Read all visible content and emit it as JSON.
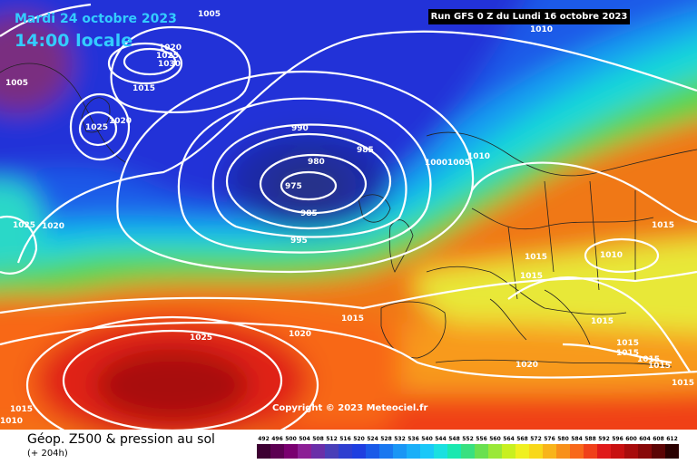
{
  "header": {
    "date": "Mardi 24 octobre 2023",
    "time": "14:00 locale",
    "run": "Run GFS 0 Z du Lundi 16 octobre 2023"
  },
  "copyright": "Copyright © 2023 Meteociel.fr",
  "legend": {
    "title": "Géop. Z500 & pression au sol",
    "subtitle": "(+ 204h)",
    "ticks": [
      "492",
      "496",
      "500",
      "504",
      "508",
      "512",
      "516",
      "520",
      "524",
      "528",
      "532",
      "536",
      "540",
      "544",
      "548",
      "552",
      "556",
      "560",
      "564",
      "568",
      "572",
      "576",
      "580",
      "584",
      "588",
      "592",
      "596",
      "600",
      "604",
      "608",
      "612"
    ],
    "colors": [
      "#3d0032",
      "#5c0052",
      "#7a0070",
      "#8c1f95",
      "#6a2fa8",
      "#4a3fb8",
      "#2f3fd0",
      "#1f3fe0",
      "#1a5ae8",
      "#1a78f0",
      "#1a96f5",
      "#1aaff8",
      "#1ac8f8",
      "#1ae0e0",
      "#1ae8b0",
      "#38e080",
      "#6ae050",
      "#9ae838",
      "#c8f020",
      "#f0f020",
      "#f8d81a",
      "#f8b41a",
      "#f8901a",
      "#f8681a",
      "#f0401a",
      "#e01a1a",
      "#c81010",
      "#a80c0c",
      "#880808",
      "#5c0404",
      "#2a0000"
    ]
  },
  "isobar_labels": [
    {
      "text": "1005"
    },
    {
      "text": "1020"
    },
    {
      "text": "1025"
    },
    {
      "text": "1030"
    },
    {
      "text": "1015"
    },
    {
      "text": "1005"
    },
    {
      "text": "1025"
    },
    {
      "text": "1020"
    },
    {
      "text": "1010"
    },
    {
      "text": "990"
    },
    {
      "text": "985"
    },
    {
      "text": "980"
    },
    {
      "text": "975"
    },
    {
      "text": "985"
    },
    {
      "text": "995"
    },
    {
      "text": "1000"
    },
    {
      "text": "1005"
    },
    {
      "text": "1010"
    },
    {
      "text": "1025"
    },
    {
      "text": "1020"
    },
    {
      "text": "1015"
    },
    {
      "text": "1015"
    },
    {
      "text": "1010"
    },
    {
      "text": "1015"
    },
    {
      "text": "1015"
    },
    {
      "text": "1015"
    },
    {
      "text": "1020"
    },
    {
      "text": "1025"
    },
    {
      "text": "1015"
    },
    {
      "text": "1015"
    },
    {
      "text": "1015"
    },
    {
      "text": "1020"
    },
    {
      "text": "1015"
    },
    {
      "text": "1015"
    },
    {
      "text": "1010"
    },
    {
      "text": "1015"
    }
  ]
}
